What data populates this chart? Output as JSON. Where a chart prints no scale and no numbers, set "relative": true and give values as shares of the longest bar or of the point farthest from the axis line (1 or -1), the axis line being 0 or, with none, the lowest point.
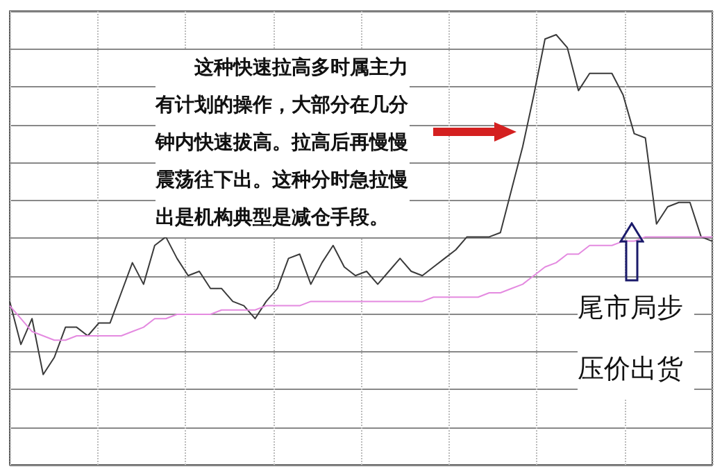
{
  "chart_data": {
    "type": "line",
    "relative": true,
    "grid": true,
    "marker": "none",
    "line_style": "solid",
    "categories": [
      null,
      null,
      null,
      null,
      null,
      null,
      null,
      null,
      null,
      null,
      null,
      null,
      null,
      null,
      null,
      null,
      null,
      null,
      null,
      null,
      null,
      null,
      null,
      null,
      null,
      null,
      null,
      null,
      null,
      null,
      null,
      null,
      null,
      null,
      null,
      null,
      null,
      null,
      null,
      null,
      null,
      null,
      null,
      null,
      null,
      null,
      null,
      null,
      null,
      null,
      null,
      null,
      null,
      null,
      null,
      null,
      null,
      null,
      null,
      null,
      null,
      null,
      null,
      null
    ],
    "series": [
      {
        "color": "#3a3a3a",
        "values": [
          0.38,
          0.28,
          0.34,
          0.21,
          0.25,
          0.32,
          0.32,
          0.3,
          0.33,
          0.33,
          0.4,
          0.47,
          0.42,
          0.51,
          0.53,
          0.48,
          0.44,
          0.45,
          0.41,
          0.41,
          0.38,
          0.37,
          0.34,
          0.38,
          0.41,
          0.48,
          0.49,
          0.42,
          0.47,
          0.51,
          0.46,
          0.44,
          0.45,
          0.42,
          0.45,
          0.48,
          0.45,
          0.44,
          0.46,
          0.48,
          0.5,
          0.53,
          0.53,
          0.53,
          0.54,
          0.64,
          0.74,
          0.86,
          0.99,
          1,
          0.97,
          0.87,
          0.91,
          0.91,
          0.91,
          0.86,
          0.77,
          0.76,
          0.56,
          0.6,
          0.61,
          0.61,
          0.53,
          0.52
        ]
      },
      {
        "color": "#e48ae0",
        "values": [
          0.37,
          0.34,
          0.31,
          0.3,
          0.29,
          0.29,
          0.3,
          0.3,
          0.3,
          0.3,
          0.3,
          0.31,
          0.32,
          0.34,
          0.34,
          0.35,
          0.35,
          0.35,
          0.35,
          0.36,
          0.36,
          0.36,
          0.36,
          0.37,
          0.37,
          0.37,
          0.37,
          0.38,
          0.38,
          0.38,
          0.38,
          0.38,
          0.38,
          0.38,
          0.38,
          0.38,
          0.38,
          0.38,
          0.39,
          0.39,
          0.39,
          0.39,
          0.39,
          0.4,
          0.4,
          0.41,
          0.42,
          0.44,
          0.46,
          0.47,
          0.49,
          0.49,
          0.51,
          0.51,
          0.51,
          0.52,
          0.52,
          0.53,
          0.53,
          0.53,
          0.53,
          0.53,
          0.53,
          0.53
        ]
      }
    ],
    "annotations": [
      "这种快速拉高多时属主力有计划的操作，大部分在几分钟内快速拔高。拉高后再慢慢震荡往下出。这种分时急拉慢出是机构典型是减仓手段。",
      "尾市局步压价出货"
    ]
  }
}
